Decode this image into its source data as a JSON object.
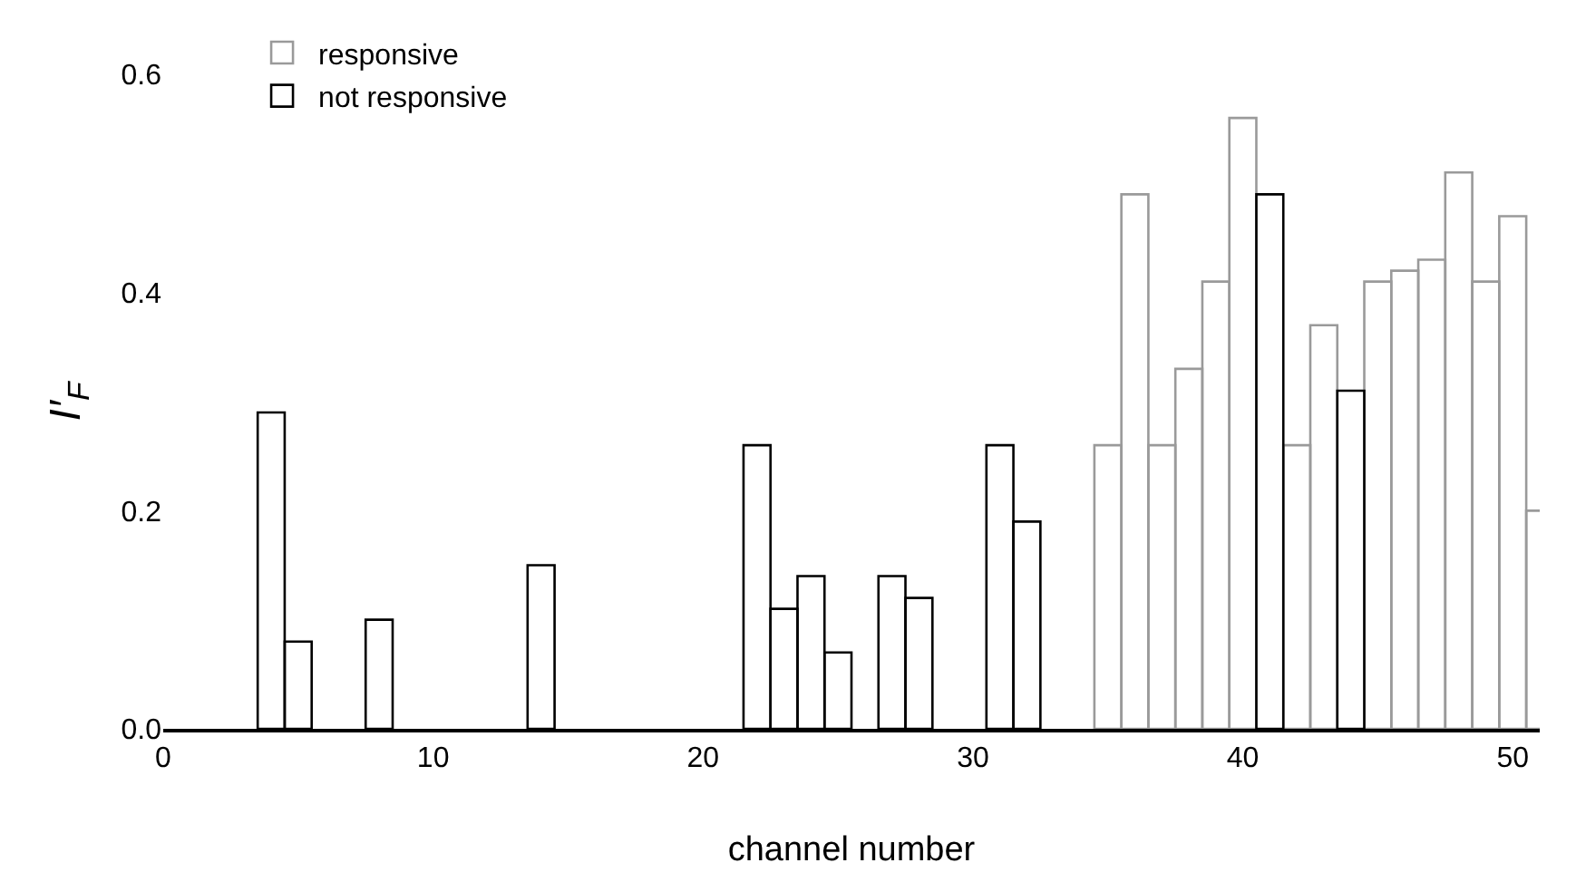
{
  "chart_data": {
    "type": "bar",
    "xlabel": "channel number",
    "ylabel": "I′$_{F}$",
    "x": [
      4,
      5,
      8,
      14,
      22,
      23,
      24,
      25,
      27,
      28,
      31,
      32,
      35,
      36,
      37,
      38,
      39,
      40,
      41,
      42,
      43,
      44,
      45,
      46,
      47,
      48,
      49,
      50,
      51
    ],
    "series": [
      {
        "name": "responsive",
        "color": "#9a9a9a",
        "values": [
          null,
          null,
          null,
          null,
          null,
          null,
          null,
          null,
          null,
          null,
          null,
          null,
          0.26,
          0.49,
          0.26,
          0.33,
          0.41,
          0.56,
          null,
          0.26,
          0.37,
          null,
          0.41,
          0.42,
          0.43,
          0.51,
          0.41,
          0.47,
          0.2
        ]
      },
      {
        "name": "not responsive",
        "color": "#000000",
        "values": [
          0.29,
          0.08,
          0.1,
          0.15,
          0.26,
          0.11,
          0.14,
          0.07,
          0.14,
          0.12,
          0.26,
          0.19,
          null,
          null,
          null,
          null,
          null,
          null,
          0.49,
          null,
          null,
          0.31,
          null,
          null,
          null,
          null,
          null,
          null,
          null
        ]
      }
    ],
    "xlim": [
      0,
      51
    ],
    "xticks": [
      0,
      10,
      20,
      30,
      40,
      50
    ],
    "ylim": [
      0,
      0.6
    ],
    "yticks": [
      {
        "value": 0,
        "label": "0.0"
      },
      {
        "value": 0.2,
        "label": "0.2"
      },
      {
        "value": 0.4,
        "label": "0.4"
      },
      {
        "value": 0.6,
        "label": "0.6"
      }
    ],
    "legend": "top left"
  }
}
